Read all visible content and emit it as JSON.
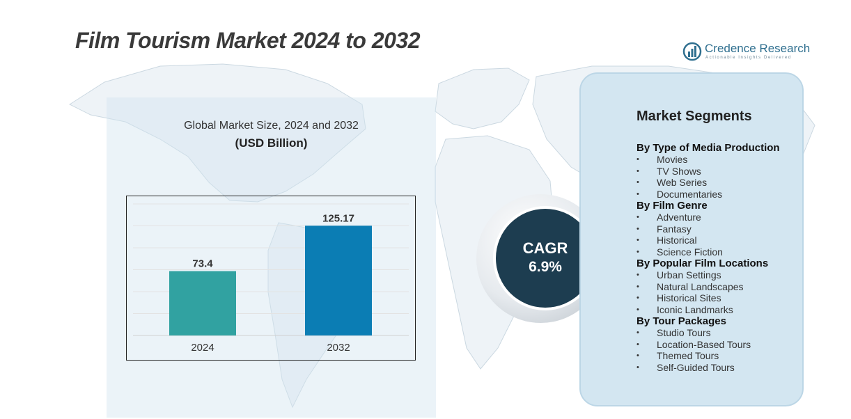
{
  "title": "Film Tourism Market 2024 to 2032",
  "logo": {
    "name": "Credence Research",
    "tagline": "Actionable Insights Delivered",
    "icon": "bar-chart-globe-icon"
  },
  "chart_data": {
    "type": "bar",
    "title": "Global Market Size, 2024 and 2032",
    "unit": "(USD Billion)",
    "categories": [
      "2024",
      "2032"
    ],
    "values": [
      73.4,
      125.17
    ],
    "value_labels": [
      "73.4",
      "125.17"
    ],
    "colors": [
      "#31a2a1",
      "#0b7db4"
    ],
    "xlabel": "",
    "ylabel": "",
    "ylim": [
      0,
      150
    ],
    "grid": true,
    "legend": "none"
  },
  "cagr": {
    "label": "CAGR",
    "value": "6.9%"
  },
  "segments": {
    "title": "Market Segments",
    "groups": [
      {
        "heading": "By Type of Media Production",
        "items": [
          "Movies",
          "TV Shows",
          "Web Series",
          "Documentaries"
        ]
      },
      {
        "heading": "By Film Genre",
        "items": [
          "Adventure",
          "Fantasy",
          "Historical",
          "Science Fiction"
        ]
      },
      {
        "heading": "By Popular Film Locations",
        "items": [
          "Urban Settings",
          "Natural Landscapes",
          "Historical Sites",
          "Iconic Landmarks"
        ]
      },
      {
        "heading": "By Tour Packages",
        "items": [
          "Studio Tours",
          "Location-Based Tours",
          "Themed Tours",
          "Self-Guided Tours"
        ]
      }
    ]
  },
  "colors": {
    "title": "#3a3a3a",
    "cagr_circle": "#1d3d50",
    "segment_panel": "#d3e6f1",
    "map": "#dbe5ec"
  }
}
